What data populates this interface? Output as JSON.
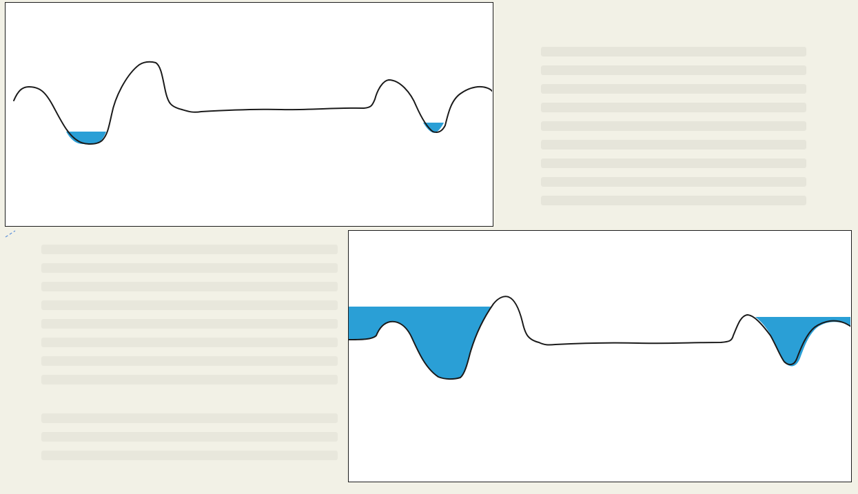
{
  "colors": {
    "page_background": "#f2f1e6",
    "panel_background": "#ffffff",
    "terrain_line": "#1a1a1a",
    "water": "#2a9fd6",
    "smudge_mark": "#5b8fd9"
  },
  "panels": [
    {
      "name": "terrain-panel-lower-water",
      "water_pools": 2,
      "pools_fill_to_brim": false
    },
    {
      "name": "terrain-panel-higher-water",
      "water_pools": 2,
      "pools_fill_to_brim": true
    }
  ]
}
